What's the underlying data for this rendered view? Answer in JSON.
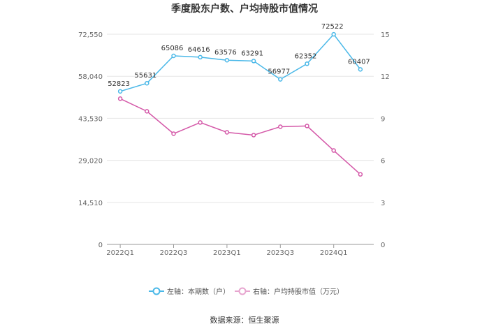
{
  "chart_data": {
    "type": "line",
    "title": "季度股东户数、户均持股市值情况",
    "categories": [
      "2022Q1",
      "2022Q2",
      "2022Q3",
      "2022Q4",
      "2023Q1",
      "2023Q2",
      "2023Q3",
      "2023Q4",
      "2024Q1",
      "2024Q2"
    ],
    "x_tick_labels": [
      "2022Q1",
      "2022Q3",
      "2023Q1",
      "2023Q3",
      "2024Q1"
    ],
    "left_axis": {
      "ylim": [
        0,
        72550
      ],
      "ticks": [
        "0",
        "14,510",
        "29,020",
        "43,530",
        "58,040",
        "72,550"
      ],
      "tick_values": [
        0,
        14510,
        29020,
        43530,
        58040,
        72550
      ]
    },
    "right_axis": {
      "ylim": [
        0,
        15
      ],
      "ticks": [
        "0",
        "3",
        "6",
        "9",
        "12",
        "15"
      ],
      "tick_values": [
        0,
        3,
        6,
        9,
        12,
        15
      ]
    },
    "series": [
      {
        "name": "左轴：本期数（户）",
        "axis": "left",
        "color": "#4ab8e8",
        "values": [
          52823,
          55631,
          65086,
          64616,
          63576,
          63291,
          56977,
          62352,
          72522,
          60407
        ],
        "labels": [
          "52823",
          "55631",
          "65086",
          "64616",
          "63576",
          "63291",
          "56977",
          "62352",
          "72522",
          "60407"
        ]
      },
      {
        "name": "右轴：户均持股市值（万元）",
        "axis": "right",
        "color": "#d458a8",
        "values": [
          10.4,
          9.5,
          7.9,
          8.7,
          8.0,
          7.8,
          8.4,
          8.45,
          6.7,
          5.0
        ]
      }
    ],
    "grid": true,
    "legend_position": "bottom"
  },
  "source": "数据来源：恒生聚源"
}
